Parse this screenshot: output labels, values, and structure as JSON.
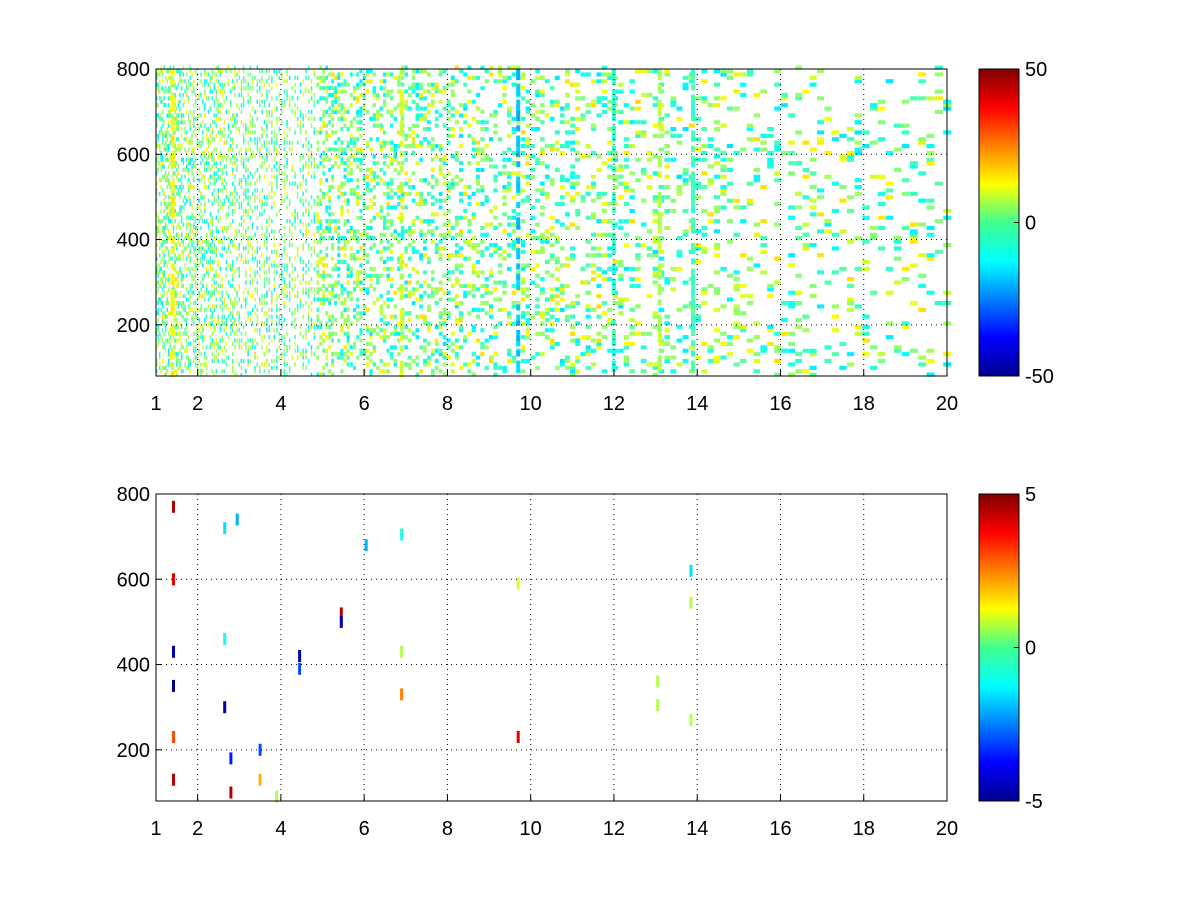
{
  "chart_data": [
    {
      "type": "heatmap",
      "title": "",
      "xlabel": "",
      "ylabel": "",
      "xlim": [
        1,
        20
      ],
      "ylim": [
        80,
        800
      ],
      "x_ticks": [
        "1",
        "2",
        "4",
        "6",
        "8",
        "10",
        "12",
        "14",
        "16",
        "18",
        "20"
      ],
      "x_tick_values": [
        1,
        2,
        4,
        6,
        8,
        10,
        12,
        14,
        16,
        18,
        20
      ],
      "y_ticks": [
        "200",
        "400",
        "600",
        "800"
      ],
      "y_tick_values": [
        200,
        400,
        600,
        800
      ],
      "grid": true,
      "colormap": "jet",
      "colorbar": {
        "min": -50,
        "max": 50,
        "ticks": [
          "50",
          "0",
          "-50"
        ],
        "tick_values": [
          50,
          0,
          -50
        ]
      },
      "background": "#ffffff",
      "sparse_cells_note": "dense noisy coverage at low x, sparser toward high x; values mostly near 0 (green/cyan/yellow)",
      "highlight_columns": [
        {
          "x": 1.4,
          "value": 12
        },
        {
          "x": 6.9,
          "value": 8
        },
        {
          "x": 9.7,
          "value": -18
        },
        {
          "x": 12.0,
          "value": -8
        },
        {
          "x": 13.1,
          "value": 5
        },
        {
          "x": 13.9,
          "value": -6
        }
      ]
    },
    {
      "type": "heatmap",
      "title": "",
      "xlabel": "",
      "ylabel": "",
      "xlim": [
        1,
        20
      ],
      "ylim": [
        80,
        800
      ],
      "x_ticks": [
        "1",
        "2",
        "4",
        "6",
        "8",
        "10",
        "12",
        "14",
        "16",
        "18",
        "20"
      ],
      "x_tick_values": [
        1,
        2,
        4,
        6,
        8,
        10,
        12,
        14,
        16,
        18,
        20
      ],
      "y_ticks": [
        "200",
        "400",
        "600",
        "800"
      ],
      "y_tick_values": [
        200,
        400,
        600,
        800
      ],
      "grid": true,
      "colormap": "jet",
      "colorbar": {
        "min": -5,
        "max": 5,
        "ticks": [
          "5",
          "0",
          "-5"
        ],
        "tick_values": [
          5,
          0,
          -5
        ]
      },
      "background": "#ffffff",
      "points": [
        {
          "x": 1.42,
          "y": 770,
          "value": 4.5
        },
        {
          "x": 1.42,
          "y": 600,
          "value": 4.0
        },
        {
          "x": 1.42,
          "y": 430,
          "value": -4.5
        },
        {
          "x": 1.42,
          "y": 350,
          "value": -5.0
        },
        {
          "x": 1.42,
          "y": 230,
          "value": 3.0
        },
        {
          "x": 1.42,
          "y": 130,
          "value": 4.5
        },
        {
          "x": 2.65,
          "y": 720,
          "value": -1.5
        },
        {
          "x": 2.65,
          "y": 460,
          "value": -1.0
        },
        {
          "x": 2.65,
          "y": 300,
          "value": -4.5
        },
        {
          "x": 2.8,
          "y": 180,
          "value": -3.5
        },
        {
          "x": 2.8,
          "y": 100,
          "value": 4.5
        },
        {
          "x": 2.95,
          "y": 740,
          "value": -2.0
        },
        {
          "x": 3.5,
          "y": 200,
          "value": -3.0
        },
        {
          "x": 3.5,
          "y": 130,
          "value": 2.0
        },
        {
          "x": 3.9,
          "y": 90,
          "value": 0.5
        },
        {
          "x": 4.45,
          "y": 420,
          "value": -4.5
        },
        {
          "x": 4.45,
          "y": 390,
          "value": -3.0
        },
        {
          "x": 5.45,
          "y": 520,
          "value": 4.5
        },
        {
          "x": 5.45,
          "y": 500,
          "value": -4.5
        },
        {
          "x": 6.05,
          "y": 680,
          "value": -2.0
        },
        {
          "x": 6.9,
          "y": 705,
          "value": -1.0
        },
        {
          "x": 6.9,
          "y": 430,
          "value": 0.5
        },
        {
          "x": 6.9,
          "y": 330,
          "value": 2.5
        },
        {
          "x": 9.7,
          "y": 590,
          "value": 1.0
        },
        {
          "x": 9.7,
          "y": 230,
          "value": 4.0
        },
        {
          "x": 13.05,
          "y": 360,
          "value": 0.5
        },
        {
          "x": 13.05,
          "y": 305,
          "value": 0.5
        },
        {
          "x": 13.85,
          "y": 620,
          "value": -1.5
        },
        {
          "x": 13.85,
          "y": 545,
          "value": 0.5
        },
        {
          "x": 13.85,
          "y": 270,
          "value": 0.5
        }
      ]
    }
  ]
}
